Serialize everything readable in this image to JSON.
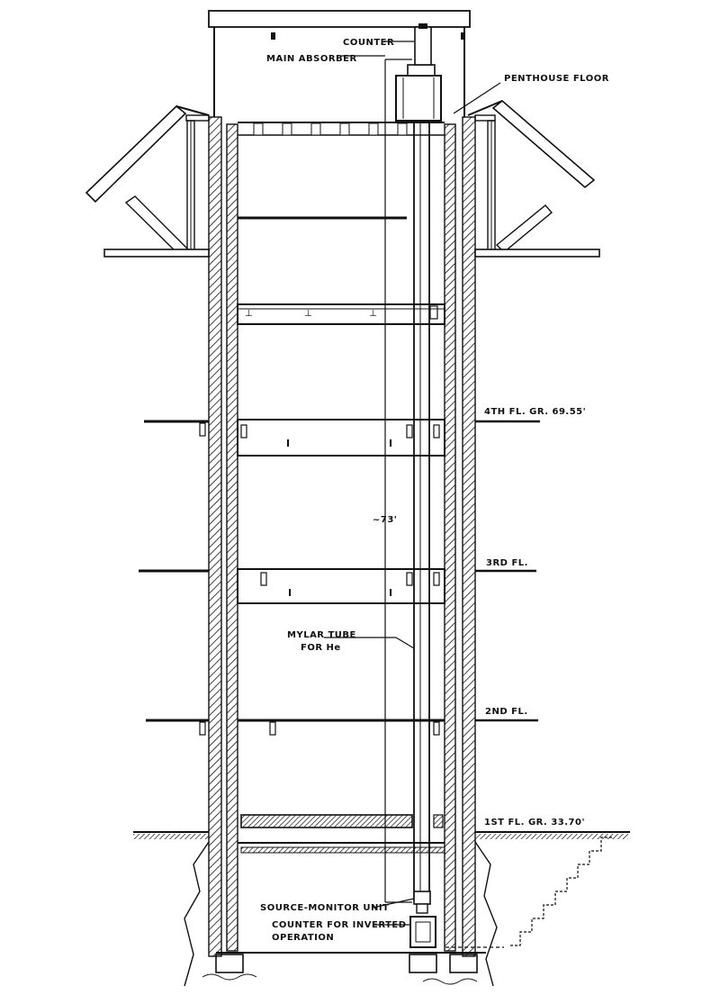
{
  "labels": {
    "counter": "COUNTER",
    "main_absorber": "MAIN ABSORBER",
    "penthouse_floor": "PENTHOUSE FLOOR",
    "fourth_floor": "4TH FL. GR. 69.55'",
    "height": "~73'",
    "third_floor": "3RD FL.",
    "mylar_line1": "MYLAR TUBE",
    "mylar_line2": "FOR He",
    "second_floor": "2ND FL.",
    "first_floor": "1ST FL. GR. 33.70'",
    "source_monitor": "SOURCE-MONITOR UNIT",
    "counter_inverted_line1": "COUNTER FOR INVERTED",
    "counter_inverted_line2": "OPERATION"
  },
  "colors": {
    "ink": "#111111",
    "paper": "#ffffff"
  }
}
